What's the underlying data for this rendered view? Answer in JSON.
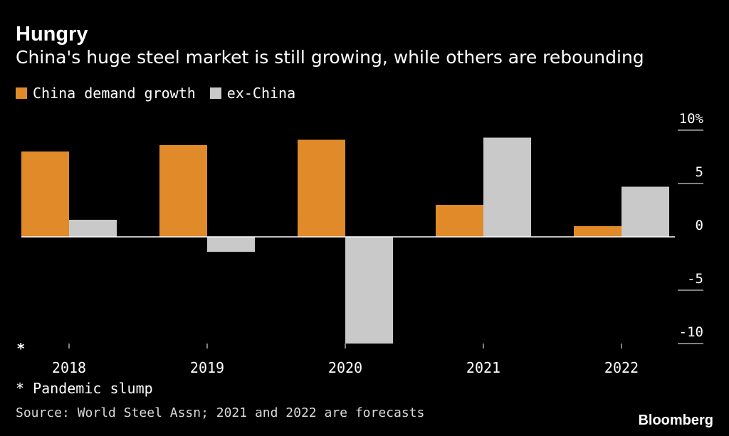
{
  "chart_data": {
    "type": "bar",
    "title": "Hungry",
    "subtitle": "China's huge steel market is still growing, while others are rebounding",
    "categories": [
      "2018",
      "2019",
      "2020",
      "2021",
      "2022"
    ],
    "series": [
      {
        "name": "China demand growth",
        "color": "#e08a2a",
        "values": [
          8.0,
          8.6,
          9.1,
          3.0,
          1.0
        ]
      },
      {
        "name": "ex-China",
        "color": "#c9c9c9",
        "values": [
          1.6,
          -1.4,
          -10.0,
          9.3,
          4.7
        ]
      }
    ],
    "ylim": [
      -10,
      10
    ],
    "yticks": [
      10,
      5,
      0,
      -5,
      -10
    ],
    "ytick_labels": [
      "10%",
      "5",
      "0",
      "-5",
      "-10"
    ],
    "annotation_marker": "*",
    "annotation_category": "2018",
    "legend_position": "top-left",
    "grid": false
  },
  "footnote": "* Pandemic slump",
  "source": "Source: World Steel Assn; 2021 and 2022 are forecasts",
  "brand": "Bloomberg",
  "colors": {
    "background": "#000000",
    "text": "#ffffff",
    "axis": "#ffffff"
  }
}
